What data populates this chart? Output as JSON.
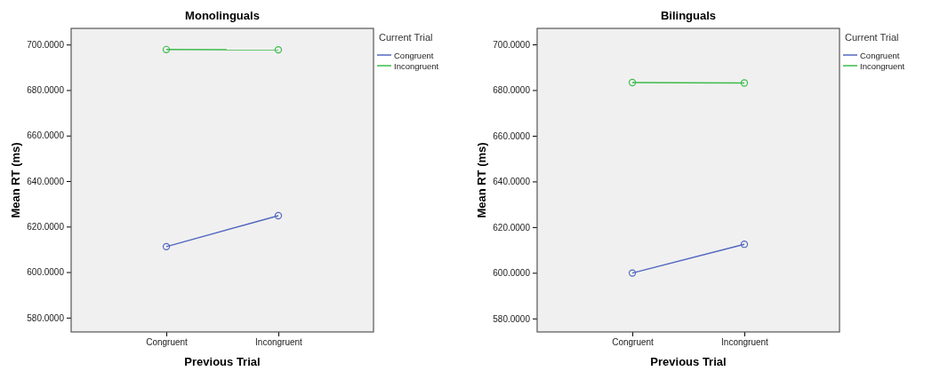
{
  "chart_data": [
    {
      "type": "line",
      "title": "Monolinguals",
      "xlabel": "Previous Trial",
      "ylabel": "Mean RT (ms)",
      "legend_title": "Current Trial",
      "legend": "right",
      "marker": "circle",
      "categories": [
        "Congruent",
        "Incongruent"
      ],
      "series": [
        {
          "name": "Congruent",
          "color": "#5468c0",
          "values": [
            611.2,
            624.8
          ]
        },
        {
          "name": "Incongruent",
          "color": "#3dbb4a",
          "values": [
            697.8,
            697.7
          ]
        }
      ],
      "ylim": [
        573.7,
        707.1
      ],
      "yticks": [
        {
          "value": 580,
          "label": "580.0000"
        },
        {
          "value": 600,
          "label": "600.0000"
        },
        {
          "value": 620,
          "label": "620.0000"
        },
        {
          "value": 640,
          "label": "640.0000"
        },
        {
          "value": 660,
          "label": "660.0000"
        },
        {
          "value": 680,
          "label": "680.0000"
        },
        {
          "value": 700,
          "label": "700.0000"
        }
      ]
    },
    {
      "type": "line",
      "title": "Bilinguals",
      "xlabel": "Previous Trial",
      "ylabel": "Mean RT (ms)",
      "legend_title": "Current Trial",
      "legend": "right",
      "marker": "circle",
      "categories": [
        "Congruent",
        "Incongruent"
      ],
      "series": [
        {
          "name": "Congruent",
          "color": "#5468c0",
          "values": [
            599.9,
            612.5
          ]
        },
        {
          "name": "Incongruent",
          "color": "#3dbb4a",
          "values": [
            683.3,
            683.1
          ]
        }
      ],
      "ylim": [
        574.1,
        707.0
      ],
      "yticks": [
        {
          "value": 580,
          "label": "580.0000"
        },
        {
          "value": 600,
          "label": "600.0000"
        },
        {
          "value": 620,
          "label": "620.0000"
        },
        {
          "value": 640,
          "label": "640.0000"
        },
        {
          "value": 660,
          "label": "660.0000"
        },
        {
          "value": 680,
          "label": "680.0000"
        },
        {
          "value": 700,
          "label": "700.0000"
        }
      ]
    }
  ]
}
